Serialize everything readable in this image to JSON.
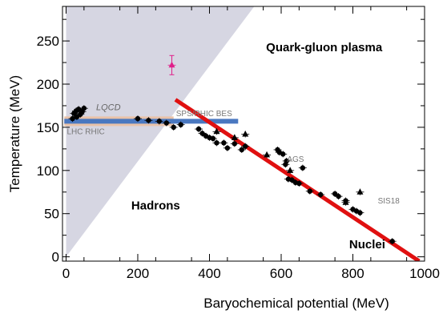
{
  "chart_data": {
    "type": "scatter",
    "title": "",
    "xlabel": "Baryochemical potential (MeV)",
    "ylabel": "Temperature (MeV)",
    "xlim": [
      -10,
      1000
    ],
    "ylim": [
      -5,
      290
    ],
    "xticks": [
      0,
      200,
      400,
      600,
      800,
      1000
    ],
    "yticks": [
      0,
      50,
      100,
      150,
      200,
      250
    ],
    "grid": false,
    "regions": [
      {
        "name": "hadron-region",
        "label": "Hadrons",
        "color": "#d6d6e2",
        "polygon": [
          [
            0,
            0
          ],
          [
            0,
            290
          ],
          [
            525,
            290
          ]
        ]
      }
    ],
    "region_labels": [
      {
        "text": "Quark-gluon plasma",
        "x": 720,
        "y": 238
      },
      {
        "text": "Hadrons",
        "x": 250,
        "y": 55
      },
      {
        "text": "Nuclei",
        "x": 840,
        "y": 10
      }
    ],
    "annotations": [
      {
        "text": "LQCD",
        "x": 118,
        "y": 170,
        "style": "italic"
      },
      {
        "text": "LHC RHIC",
        "x": 55,
        "y": 142,
        "style": "normal"
      },
      {
        "text": "SPS/RHIC BES",
        "x": 385,
        "y": 163,
        "style": "normal"
      },
      {
        "text": "AGS",
        "x": 640,
        "y": 110,
        "style": "normal"
      },
      {
        "text": "SIS18",
        "x": 900,
        "y": 62,
        "style": "normal"
      }
    ],
    "lines": [
      {
        "name": "lqcd-band",
        "color": "#e9c2a8",
        "width": 12,
        "points": [
          [
            -5,
            157
          ],
          [
            300,
            157
          ]
        ]
      },
      {
        "name": "crossover-line",
        "color": "#4a78c0",
        "width": 6,
        "points": [
          [
            -5,
            157
          ],
          [
            480,
            157
          ]
        ]
      },
      {
        "name": "freezeout-line",
        "color": "#e01010",
        "width": 5,
        "points": [
          [
            305,
            182
          ],
          [
            985,
            -5
          ]
        ]
      }
    ],
    "series": [
      {
        "marker": "circle",
        "color": "#000000",
        "points": [
          [
            18,
            160
          ],
          [
            22,
            166
          ],
          [
            28,
            169
          ],
          [
            30,
            162
          ],
          [
            35,
            171
          ],
          [
            40,
            165
          ],
          [
            45,
            168
          ],
          [
            50,
            172
          ],
          [
            200,
            160
          ],
          [
            230,
            158
          ],
          [
            260,
            157
          ],
          [
            280,
            155
          ],
          [
            300,
            150
          ],
          [
            320,
            153
          ],
          [
            370,
            148
          ],
          [
            380,
            143
          ],
          [
            390,
            140
          ],
          [
            400,
            138
          ],
          [
            410,
            137
          ],
          [
            420,
            132
          ],
          [
            440,
            132
          ],
          [
            450,
            126
          ],
          [
            470,
            131
          ],
          [
            490,
            124
          ],
          [
            500,
            128
          ],
          [
            590,
            124
          ],
          [
            595,
            121
          ],
          [
            605,
            119
          ],
          [
            612,
            107
          ],
          [
            615,
            111
          ],
          [
            620,
            90
          ],
          [
            630,
            89
          ],
          [
            640,
            86
          ],
          [
            650,
            85
          ],
          [
            660,
            103
          ],
          [
            680,
            76
          ],
          [
            710,
            72
          ],
          [
            750,
            73
          ],
          [
            760,
            70
          ],
          [
            780,
            65
          ],
          [
            800,
            55
          ],
          [
            810,
            53
          ],
          [
            820,
            51
          ],
          [
            910,
            18
          ]
        ]
      },
      {
        "marker": "triangle",
        "color": "#000000",
        "points": [
          [
            420,
            145
          ],
          [
            470,
            138
          ],
          [
            500,
            142
          ],
          [
            560,
            118
          ],
          [
            625,
            100
          ],
          [
            780,
            63
          ],
          [
            820,
            75
          ]
        ]
      },
      {
        "marker": "triangle",
        "color": "#e0208a",
        "points": [
          [
            295,
            222
          ]
        ]
      }
    ]
  }
}
